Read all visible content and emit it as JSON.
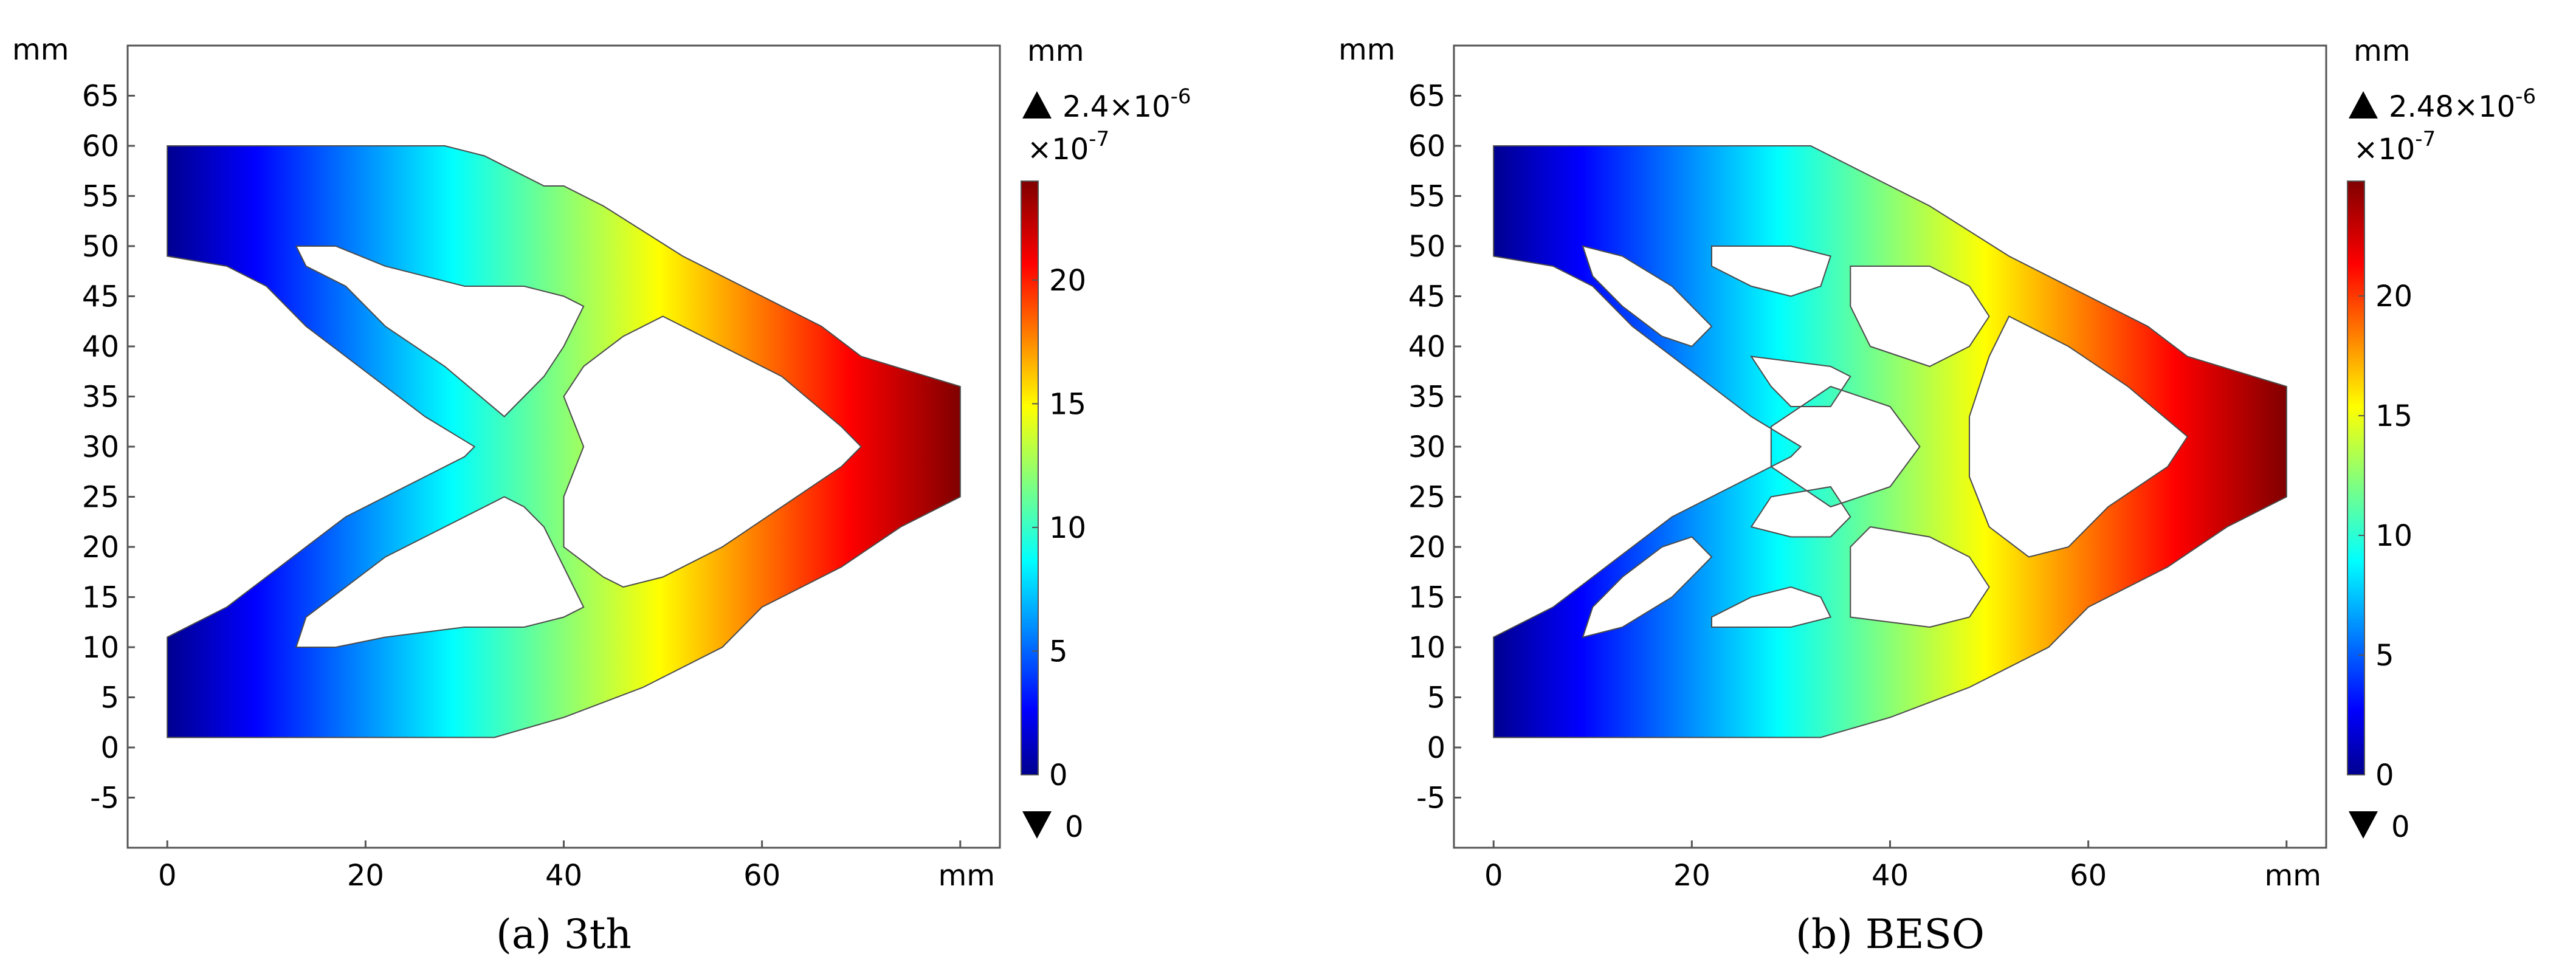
{
  "chart_data": [
    {
      "type": "heatmap",
      "panel_label": "a",
      "caption": "3th",
      "x_unit": "mm",
      "y_unit": "mm",
      "xlim": [
        -4,
        84
      ],
      "ylim": [
        -10,
        70
      ],
      "x_ticks": [
        0,
        20,
        40,
        60,
        80
      ],
      "x_tick_labels": [
        "0",
        "20",
        "40",
        "60",
        ""
      ],
      "y_ticks": [
        -5,
        0,
        5,
        10,
        15,
        20,
        25,
        30,
        35,
        40,
        45,
        50,
        55,
        60,
        65
      ],
      "grid": false,
      "colorbar": {
        "unit": "mm",
        "max_label": "2.4×10",
        "max_exp": "-6",
        "min_label": "0",
        "scale_label": "×10",
        "scale_exp": "-7",
        "range": [
          0,
          24
        ],
        "ticks": [
          0,
          5,
          10,
          15,
          20
        ],
        "colormap": "jet"
      },
      "structure_outline": [
        [
          0,
          60
        ],
        [
          28,
          60
        ],
        [
          32,
          59
        ],
        [
          38,
          56
        ],
        [
          40,
          56
        ],
        [
          44,
          54
        ],
        [
          52,
          49
        ],
        [
          58,
          46
        ],
        [
          66,
          42
        ],
        [
          70,
          39
        ],
        [
          80,
          36
        ],
        [
          80,
          25
        ],
        [
          74,
          22
        ],
        [
          68,
          18
        ],
        [
          60,
          14
        ],
        [
          56,
          10
        ],
        [
          48,
          6
        ],
        [
          40,
          3
        ],
        [
          33,
          1
        ],
        [
          0,
          1
        ],
        [
          0,
          11
        ],
        [
          6,
          14
        ],
        [
          10,
          17
        ],
        [
          14,
          20
        ],
        [
          18,
          23
        ],
        [
          22,
          25
        ],
        [
          26,
          27
        ],
        [
          30,
          29
        ],
        [
          31,
          30
        ],
        [
          26,
          33
        ],
        [
          22,
          36
        ],
        [
          18,
          39
        ],
        [
          14,
          42
        ],
        [
          10,
          46
        ],
        [
          6,
          48
        ],
        [
          0,
          49
        ]
      ],
      "holes": [
        [
          [
            13,
            50
          ],
          [
            17,
            50
          ],
          [
            22,
            48
          ],
          [
            30,
            46
          ],
          [
            36,
            46
          ],
          [
            40,
            45
          ],
          [
            42,
            44
          ],
          [
            40,
            40
          ],
          [
            38,
            37
          ],
          [
            36,
            35
          ],
          [
            34,
            33
          ],
          [
            28,
            38
          ],
          [
            22,
            42
          ],
          [
            18,
            46
          ],
          [
            14,
            48
          ]
        ],
        [
          [
            50,
            43
          ],
          [
            56,
            40
          ],
          [
            62,
            37
          ],
          [
            68,
            32
          ],
          [
            70,
            30
          ],
          [
            68,
            28
          ],
          [
            62,
            24
          ],
          [
            56,
            20
          ],
          [
            50,
            17
          ],
          [
            46,
            16
          ],
          [
            44,
            17
          ],
          [
            40,
            20
          ],
          [
            40,
            25
          ],
          [
            42,
            30
          ],
          [
            40,
            35
          ],
          [
            42,
            38
          ],
          [
            46,
            41
          ]
        ],
        [
          [
            13,
            10
          ],
          [
            17,
            10
          ],
          [
            22,
            11
          ],
          [
            30,
            12
          ],
          [
            36,
            12
          ],
          [
            40,
            13
          ],
          [
            42,
            14
          ],
          [
            40,
            18
          ],
          [
            38,
            22
          ],
          [
            36,
            24
          ],
          [
            34,
            25
          ],
          [
            28,
            22
          ],
          [
            22,
            19
          ],
          [
            18,
            16
          ],
          [
            14,
            13
          ]
        ]
      ],
      "value_range_mm": [
        0,
        2.4e-06
      ]
    },
    {
      "type": "heatmap",
      "panel_label": "b",
      "caption": "BESO",
      "x_unit": "mm",
      "y_unit": "mm",
      "xlim": [
        -4,
        84
      ],
      "ylim": [
        -10,
        70
      ],
      "x_ticks": [
        0,
        20,
        40,
        60,
        80
      ],
      "x_tick_labels": [
        "0",
        "20",
        "40",
        "60",
        ""
      ],
      "y_ticks": [
        -5,
        0,
        5,
        10,
        15,
        20,
        25,
        30,
        35,
        40,
        45,
        50,
        55,
        60,
        65
      ],
      "grid": false,
      "colorbar": {
        "unit": "mm",
        "max_label": "2.48×10",
        "max_exp": "-6",
        "min_label": "0",
        "scale_label": "×10",
        "scale_exp": "-7",
        "range": [
          0,
          24.8
        ],
        "ticks": [
          0,
          5,
          10,
          15,
          20
        ],
        "colormap": "jet"
      },
      "structure_outline": [
        [
          0,
          60
        ],
        [
          32,
          60
        ],
        [
          36,
          58
        ],
        [
          40,
          56
        ],
        [
          44,
          54
        ],
        [
          52,
          49
        ],
        [
          58,
          46
        ],
        [
          66,
          42
        ],
        [
          70,
          39
        ],
        [
          80,
          36
        ],
        [
          80,
          25
        ],
        [
          74,
          22
        ],
        [
          68,
          18
        ],
        [
          60,
          14
        ],
        [
          56,
          10
        ],
        [
          48,
          6
        ],
        [
          40,
          3
        ],
        [
          33,
          1
        ],
        [
          0,
          1
        ],
        [
          0,
          11
        ],
        [
          6,
          14
        ],
        [
          10,
          17
        ],
        [
          14,
          20
        ],
        [
          18,
          23
        ],
        [
          22,
          25
        ],
        [
          26,
          27
        ],
        [
          30,
          29
        ],
        [
          31,
          30
        ],
        [
          26,
          33
        ],
        [
          22,
          36
        ],
        [
          18,
          39
        ],
        [
          14,
          42
        ],
        [
          10,
          46
        ],
        [
          6,
          48
        ],
        [
          0,
          49
        ]
      ],
      "holes": [
        [
          [
            9,
            50
          ],
          [
            13,
            49
          ],
          [
            18,
            46
          ],
          [
            22,
            42
          ],
          [
            20,
            40
          ],
          [
            17,
            41
          ],
          [
            13,
            44
          ],
          [
            10,
            47
          ]
        ],
        [
          [
            22,
            50
          ],
          [
            30,
            50
          ],
          [
            34,
            49
          ],
          [
            33,
            46
          ],
          [
            30,
            45
          ],
          [
            26,
            46
          ],
          [
            22,
            48
          ]
        ],
        [
          [
            36,
            48
          ],
          [
            44,
            48
          ],
          [
            48,
            46
          ],
          [
            50,
            43
          ],
          [
            48,
            40
          ],
          [
            44,
            38
          ],
          [
            38,
            40
          ],
          [
            36,
            44
          ]
        ],
        [
          [
            26,
            39
          ],
          [
            34,
            38
          ],
          [
            36,
            37
          ],
          [
            34,
            34
          ],
          [
            30,
            34
          ],
          [
            28,
            36
          ]
        ],
        [
          [
            28,
            32
          ],
          [
            34,
            36
          ],
          [
            40,
            34
          ],
          [
            43,
            30
          ],
          [
            40,
            26
          ],
          [
            34,
            24
          ],
          [
            28,
            28
          ]
        ],
        [
          [
            52,
            43
          ],
          [
            58,
            40
          ],
          [
            64,
            36
          ],
          [
            70,
            31
          ],
          [
            68,
            28
          ],
          [
            62,
            24
          ],
          [
            58,
            20
          ],
          [
            54,
            19
          ],
          [
            50,
            22
          ],
          [
            48,
            27
          ],
          [
            48,
            33
          ],
          [
            50,
            39
          ]
        ],
        [
          [
            26,
            22
          ],
          [
            28,
            25
          ],
          [
            34,
            26
          ],
          [
            36,
            23
          ],
          [
            34,
            21
          ],
          [
            30,
            21
          ]
        ],
        [
          [
            36,
            20
          ],
          [
            38,
            22
          ],
          [
            44,
            21
          ],
          [
            48,
            19
          ],
          [
            50,
            16
          ],
          [
            48,
            13
          ],
          [
            44,
            12
          ],
          [
            36,
            13
          ]
        ],
        [
          [
            22,
            12
          ],
          [
            30,
            12
          ],
          [
            34,
            13
          ],
          [
            33,
            15
          ],
          [
            30,
            16
          ],
          [
            26,
            15
          ],
          [
            22,
            13
          ]
        ],
        [
          [
            9,
            11
          ],
          [
            13,
            12
          ],
          [
            18,
            15
          ],
          [
            22,
            19
          ],
          [
            20,
            21
          ],
          [
            17,
            20
          ],
          [
            13,
            17
          ],
          [
            10,
            14
          ]
        ]
      ],
      "value_range_mm": [
        0,
        2.48e-06
      ]
    }
  ]
}
